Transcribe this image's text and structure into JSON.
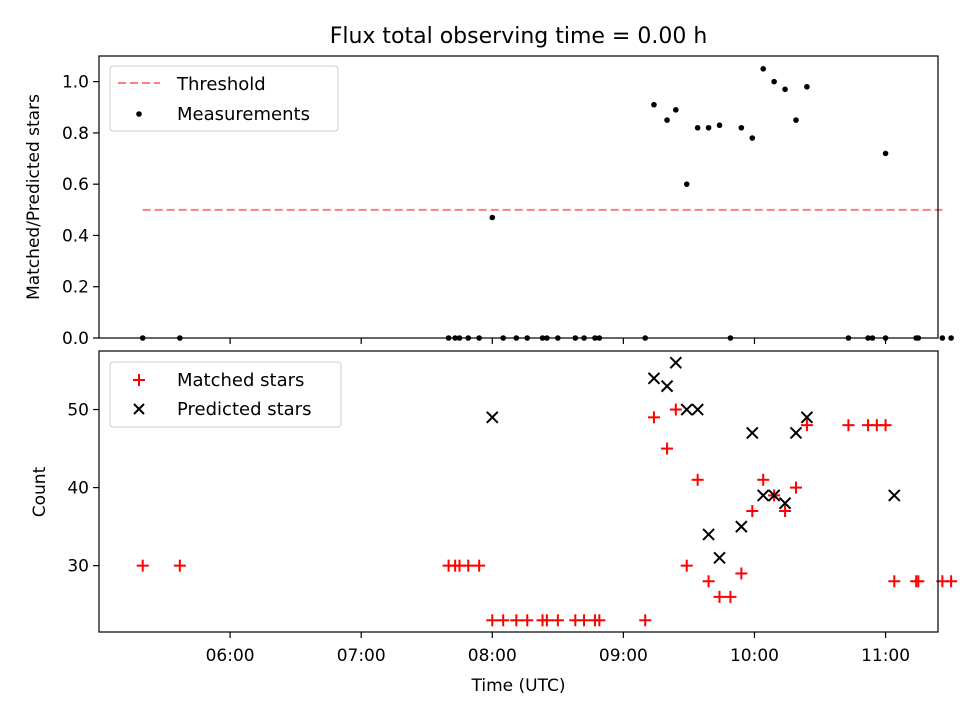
{
  "chart_data": [
    {
      "type": "scatter",
      "title": "Flux total observing time = 0.00 h",
      "xlabel": "",
      "ylabel": "Matched/Predicted stars",
      "xlim": [
        "05:00",
        "11:24"
      ],
      "ylim": [
        0,
        1.1
      ],
      "yticks": [
        "0.0",
        "0.2",
        "0.4",
        "0.6",
        "0.8",
        "1.0"
      ],
      "grid": false,
      "legend_position": "top-left",
      "threshold": {
        "name": "Threshold",
        "value": 0.5,
        "x_start": "05:20",
        "x_end": "11:26",
        "color": "#ff7f7f",
        "style": "dashed"
      },
      "series": [
        {
          "name": "Measurements",
          "color": "#000000",
          "marker": "dot",
          "points": [
            [
              "05:20",
              0
            ],
            [
              "05:37",
              0
            ],
            [
              "07:40",
              0
            ],
            [
              "07:43",
              0
            ],
            [
              "07:45",
              0
            ],
            [
              "07:49",
              0
            ],
            [
              "07:54",
              0
            ],
            [
              "08:00",
              0.47
            ],
            [
              "08:05",
              0
            ],
            [
              "08:11",
              0
            ],
            [
              "08:16",
              0
            ],
            [
              "08:23",
              0
            ],
            [
              "08:25",
              0
            ],
            [
              "08:30",
              0
            ],
            [
              "08:38",
              0
            ],
            [
              "08:42",
              0
            ],
            [
              "08:47",
              0
            ],
            [
              "08:49",
              0
            ],
            [
              "09:10",
              0
            ],
            [
              "09:14",
              0.91
            ],
            [
              "09:20",
              0.85
            ],
            [
              "09:24",
              0.89
            ],
            [
              "09:29",
              0.6
            ],
            [
              "09:34",
              0.82
            ],
            [
              "09:39",
              0.82
            ],
            [
              "09:44",
              0.83
            ],
            [
              "09:49",
              0
            ],
            [
              "09:54",
              0.82
            ],
            [
              "09:59",
              0.78
            ],
            [
              "10:04",
              1.05
            ],
            [
              "10:09",
              1.0
            ],
            [
              "10:14",
              0.97
            ],
            [
              "10:19",
              0.85
            ],
            [
              "10:24",
              0.98
            ],
            [
              "10:43",
              0
            ],
            [
              "10:52",
              0
            ],
            [
              "10:54",
              0
            ],
            [
              "11:00",
              0.72
            ],
            [
              "11:00",
              0
            ],
            [
              "11:14",
              0
            ],
            [
              "11:15",
              0
            ],
            [
              "11:26",
              0
            ],
            [
              "11:30",
              0
            ]
          ]
        }
      ]
    },
    {
      "type": "scatter",
      "title": "",
      "xlabel": "Time (UTC)",
      "ylabel": "Count",
      "xlim": [
        "05:00",
        "11:24"
      ],
      "ylim": [
        21.5,
        57.5
      ],
      "xticks": [
        "06:00",
        "07:00",
        "08:00",
        "09:00",
        "10:00",
        "11:00"
      ],
      "yticks": [
        "30",
        "40",
        "50"
      ],
      "grid": false,
      "legend_position": "top-left",
      "series": [
        {
          "name": "Matched stars",
          "color": "#ff0000",
          "marker": "plus",
          "points": [
            [
              "05:20",
              30
            ],
            [
              "05:37",
              30
            ],
            [
              "07:40",
              30
            ],
            [
              "07:43",
              30
            ],
            [
              "07:45",
              30
            ],
            [
              "07:49",
              30
            ],
            [
              "07:54",
              30
            ],
            [
              "08:00",
              23
            ],
            [
              "08:05",
              23
            ],
            [
              "08:11",
              23
            ],
            [
              "08:16",
              23
            ],
            [
              "08:23",
              23
            ],
            [
              "08:25",
              23
            ],
            [
              "08:30",
              23
            ],
            [
              "08:38",
              23
            ],
            [
              "08:42",
              23
            ],
            [
              "08:47",
              23
            ],
            [
              "08:49",
              23
            ],
            [
              "09:10",
              23
            ],
            [
              "09:14",
              49
            ],
            [
              "09:20",
              45
            ],
            [
              "09:24",
              50
            ],
            [
              "09:29",
              30
            ],
            [
              "09:34",
              41
            ],
            [
              "09:39",
              28
            ],
            [
              "09:44",
              26
            ],
            [
              "09:49",
              26
            ],
            [
              "09:54",
              29
            ],
            [
              "09:59",
              37
            ],
            [
              "10:04",
              41
            ],
            [
              "10:09",
              39
            ],
            [
              "10:14",
              37
            ],
            [
              "10:19",
              40
            ],
            [
              "10:24",
              48
            ],
            [
              "10:43",
              48
            ],
            [
              "10:52",
              48
            ],
            [
              "10:56",
              48
            ],
            [
              "11:00",
              48
            ],
            [
              "11:04",
              28
            ],
            [
              "11:14",
              28
            ],
            [
              "11:15",
              28
            ],
            [
              "11:26",
              28
            ],
            [
              "11:30",
              28
            ]
          ]
        },
        {
          "name": "Predicted stars",
          "color": "#000000",
          "marker": "x",
          "points": [
            [
              "08:00",
              49
            ],
            [
              "09:14",
              54
            ],
            [
              "09:20",
              53
            ],
            [
              "09:24",
              56
            ],
            [
              "09:29",
              50
            ],
            [
              "09:34",
              50
            ],
            [
              "09:39",
              34
            ],
            [
              "09:44",
              31
            ],
            [
              "09:54",
              35
            ],
            [
              "09:59",
              47
            ],
            [
              "10:04",
              39
            ],
            [
              "10:09",
              39
            ],
            [
              "10:14",
              38
            ],
            [
              "10:19",
              47
            ],
            [
              "10:24",
              49
            ],
            [
              "11:04",
              39
            ]
          ]
        }
      ]
    }
  ]
}
